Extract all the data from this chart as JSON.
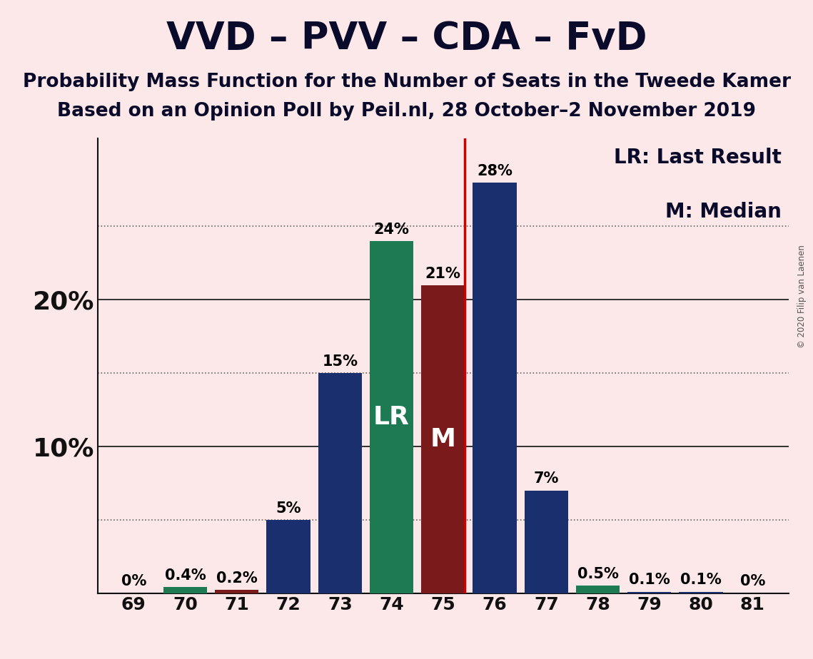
{
  "title": "VVD – PVV – CDA – FvD",
  "subtitle1": "Probability Mass Function for the Number of Seats in the Tweede Kamer",
  "subtitle2": "Based on an Opinion Poll by Peil.nl, 28 October–2 November 2019",
  "copyright": "© 2020 Filip van Laenen",
  "categories": [
    69,
    70,
    71,
    72,
    73,
    74,
    75,
    76,
    77,
    78,
    79,
    80,
    81
  ],
  "values": [
    0.0,
    0.4,
    0.2,
    5.0,
    15.0,
    24.0,
    21.0,
    28.0,
    7.0,
    0.5,
    0.1,
    0.1,
    0.0
  ],
  "labels": [
    "0%",
    "0.4%",
    "0.2%",
    "5%",
    "15%",
    "24%",
    "21%",
    "28%",
    "7%",
    "0.5%",
    "0.1%",
    "0.1%",
    "0%"
  ],
  "bar_colors": [
    "#1a2f6e",
    "#1e7a52",
    "#7a1a1a",
    "#1a2f6e",
    "#1a2f6e",
    "#1e7a52",
    "#7a1a1a",
    "#1a2f6e",
    "#1a2f6e",
    "#1e7a52",
    "#1a2f6e",
    "#1a2f6e",
    "#1a2f6e"
  ],
  "lr_seat": 74,
  "median_seat": 75,
  "lr_line_color": "#cc0000",
  "background_color": "#fce8e8",
  "grid_dotted_color": "#666666",
  "grid_solid_color": "#111111",
  "ylim": [
    0,
    31
  ],
  "legend_lr": "LR: Last Result",
  "legend_m": "M: Median",
  "lr_label": "LR",
  "m_label": "M",
  "bar_label_fontsize": 15,
  "title_fontsize": 38,
  "subtitle_fontsize": 19,
  "axis_tick_fontsize": 18,
  "yaxis_label_fontsize": 26,
  "legend_fontsize": 20,
  "inside_label_fontsize": 26
}
